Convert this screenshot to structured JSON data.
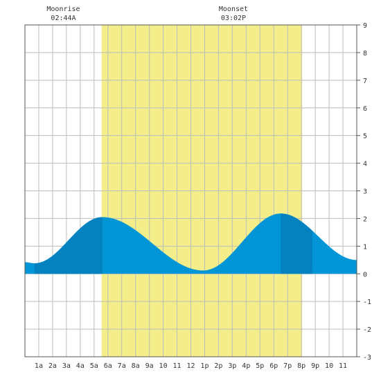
{
  "chart_data": {
    "type": "area",
    "x_unit": "hour",
    "xlim": [
      0,
      24
    ],
    "ylim": [
      -3,
      9
    ],
    "y_ticks": [
      -3,
      -2,
      -1,
      0,
      1,
      2,
      3,
      4,
      5,
      6,
      7,
      8,
      9
    ],
    "y_tick_labels": [
      "-3",
      "-2",
      "-1",
      "0",
      "1",
      "2",
      "3",
      "4",
      "5",
      "6",
      "7",
      "8",
      "9"
    ],
    "x_ticks": [
      1,
      2,
      3,
      4,
      5,
      6,
      7,
      8,
      9,
      10,
      11,
      12,
      13,
      14,
      15,
      16,
      17,
      18,
      19,
      20,
      21,
      22,
      23
    ],
    "x_tick_labels": [
      "1a",
      "2a",
      "3a",
      "4a",
      "5a",
      "6a",
      "7a",
      "8a",
      "9a",
      "10",
      "11",
      "12",
      "1p",
      "2p",
      "3p",
      "4p",
      "5p",
      "6p",
      "7p",
      "8p",
      "9p",
      "10",
      "11"
    ],
    "grid": true,
    "daylight": {
      "start": 5.55,
      "end": 20.05,
      "color": "#f3ee8a"
    },
    "moon_events": [
      {
        "label": "Moonrise",
        "time": "02:44A",
        "hour": 2.73
      },
      {
        "label": "Moonset",
        "time": "03:02P",
        "hour": 15.03
      }
    ],
    "tide": {
      "x": [
        0,
        0.7,
        5.6,
        12.9,
        18.5,
        24
      ],
      "y": [
        0.42,
        0.38,
        2.05,
        0.12,
        2.18,
        0.5
      ],
      "fill_color": "#0396d7",
      "dark_color": "#0382bf",
      "dark_bands": [
        [
          0.7,
          5.6
        ],
        [
          18.5,
          0
        ]
      ]
    }
  }
}
